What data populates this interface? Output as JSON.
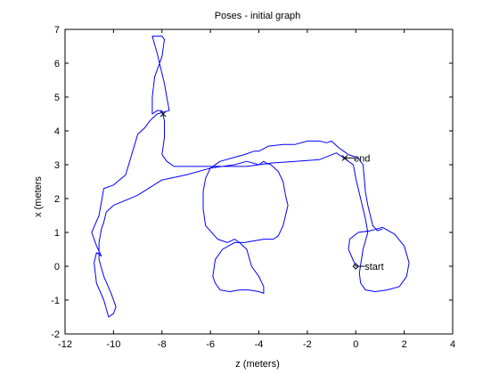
{
  "chart_data": {
    "type": "line",
    "title": "Poses - initial graph",
    "xlabel": "z (meters)",
    "ylabel": "x (meters",
    "xlim": [
      -12,
      4
    ],
    "ylim": [
      -2,
      7
    ],
    "xticks": [
      "-12",
      "-10",
      "-8",
      "-6",
      "-4",
      "-2",
      "0",
      "2",
      "4"
    ],
    "yticks": [
      "-2",
      "-1",
      "0",
      "1",
      "2",
      "3",
      "4",
      "5",
      "6",
      "7"
    ],
    "grid": false,
    "line_color": "#0000ff",
    "series": [
      {
        "x": [
          0.0,
          -0.3,
          -0.25,
          0.1,
          0.6,
          1.1,
          1.6,
          2.0,
          2.2,
          2.1,
          1.8,
          1.3,
          0.8,
          0.4,
          0.2,
          0.15,
          0.3,
          0.5,
          0.4,
          0.2,
          0.0,
          -0.1,
          -0.3,
          -0.5,
          -0.7,
          -0.8,
          -1.5,
          -2.5,
          -3.5,
          -4.5,
          -5.5,
          -6.5,
          -7.5,
          -7.8,
          -8.0,
          -7.9,
          -7.9,
          -8.0,
          -8.2,
          -8.4,
          -8.4,
          -8.3,
          -8.0,
          -7.9,
          -8.0,
          -8.4,
          -8.2,
          -7.9,
          -7.7,
          -8.2,
          -8.5,
          -8.7,
          -9.0,
          -9.5,
          -10.0,
          -10.4,
          -10.6,
          -10.9,
          -10.7,
          -10.5,
          -10.7,
          -10.8,
          -10.7,
          -10.4,
          -10.2,
          -10.0,
          -9.9,
          -10.1,
          -10.4,
          -10.6,
          -10.6,
          -10.5,
          -10.4,
          -10.3,
          -10.0,
          -9.5,
          -9.0,
          -8.0,
          -7.0,
          -6.0,
          -5.0,
          -4.5,
          -4.0,
          -3.8,
          -3.7,
          -3.5,
          -3.2,
          -3.0,
          -2.9,
          -2.8,
          -2.9,
          -3.0,
          -3.2,
          -3.4,
          -3.8,
          -4.2,
          -4.6,
          -5.0,
          -5.5,
          -5.8,
          -5.9,
          -5.8,
          -5.6,
          -5.2,
          -4.8,
          -4.4,
          -4.0,
          -3.8,
          -3.8,
          -4.0,
          -4.3,
          -4.5,
          -4.8,
          -5.0,
          -5.3,
          -5.7,
          -6.2,
          -6.3,
          -6.3,
          -6.2,
          -6.0,
          -5.6,
          -5.1,
          -4.6,
          -4.2,
          -4.0,
          -3.6,
          -3.0,
          -2.5,
          -2.0,
          -1.5,
          -1.2,
          -1.0,
          -0.7,
          -0.5,
          -0.3,
          -0.1,
          0.1,
          0.3,
          0.35,
          0.4,
          0.5,
          0.6,
          0.7,
          0.9,
          1.1
        ],
        "y": [
          0.0,
          0.5,
          0.8,
          1.0,
          1.05,
          1.15,
          0.95,
          0.6,
          0.1,
          -0.3,
          -0.6,
          -0.7,
          -0.75,
          -0.7,
          -0.5,
          -0.2,
          0.5,
          1.0,
          1.4,
          2.0,
          2.6,
          3.0,
          3.1,
          3.2,
          3.3,
          3.35,
          3.15,
          3.1,
          3.05,
          2.95,
          2.95,
          2.95,
          2.95,
          3.1,
          3.3,
          3.8,
          4.3,
          4.6,
          4.6,
          4.5,
          5.0,
          5.6,
          6.2,
          6.7,
          6.8,
          6.8,
          6.3,
          5.4,
          4.6,
          4.5,
          4.3,
          4.1,
          3.9,
          2.7,
          2.4,
          2.3,
          1.5,
          1.0,
          0.6,
          0.3,
          0.4,
          0.1,
          -0.5,
          -1.0,
          -1.5,
          -1.4,
          -1.2,
          -0.8,
          -0.3,
          0.2,
          0.7,
          1.1,
          1.3,
          1.6,
          1.8,
          1.95,
          2.1,
          2.55,
          2.7,
          2.9,
          3.0,
          3.1,
          3.0,
          3.1,
          3.05,
          3.0,
          2.8,
          2.5,
          2.1,
          1.8,
          1.5,
          1.2,
          0.9,
          0.8,
          0.8,
          0.75,
          0.7,
          0.7,
          0.5,
          0.2,
          -0.3,
          -0.5,
          -0.7,
          -0.75,
          -0.7,
          -0.7,
          -0.75,
          -0.8,
          -0.6,
          -0.3,
          0.0,
          0.5,
          0.7,
          0.8,
          0.7,
          0.8,
          1.2,
          1.7,
          2.2,
          2.6,
          2.9,
          3.1,
          3.2,
          3.3,
          3.4,
          3.4,
          3.55,
          3.6,
          3.6,
          3.7,
          3.7,
          3.65,
          3.7,
          3.5,
          3.4,
          3.3,
          3.25,
          3.2,
          3.0,
          2.6,
          2.2,
          1.8,
          1.5,
          1.2,
          1.05,
          1.1
        ]
      }
    ],
    "markers": [
      {
        "label": "start",
        "x": 0.0,
        "y": 0.0,
        "symbol": "diamond"
      },
      {
        "label": "end",
        "x": -0.45,
        "y": 3.2,
        "symbol": "x"
      }
    ],
    "unlabeled_markers": [
      {
        "x": -7.95,
        "y": 4.5,
        "symbol": "x"
      }
    ]
  }
}
